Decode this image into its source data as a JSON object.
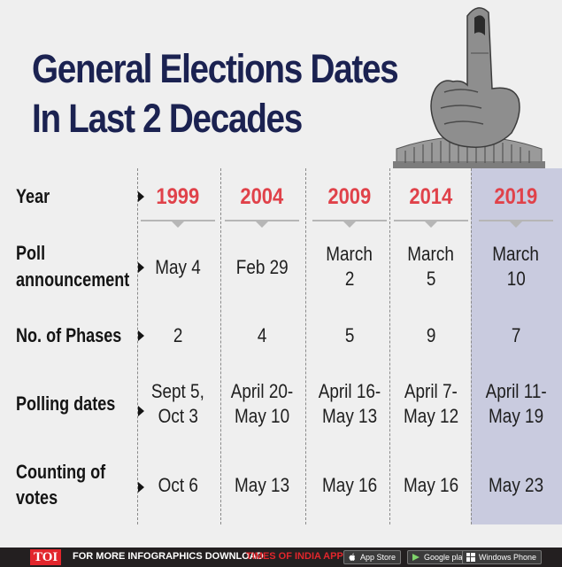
{
  "title": {
    "line1": "General Elections Dates",
    "line2": "In Last 2 Decades"
  },
  "highlight_color": "#c9cbdf",
  "accent_color": "#e0424a",
  "title_color": "#1b2251",
  "row_labels": {
    "year": "Year",
    "poll_line1": "Poll",
    "poll_line2": "announcement",
    "phases": "No. of Phases",
    "polling": "Polling dates",
    "counting_line1": "Counting of",
    "counting_line2": "votes"
  },
  "columns": [
    {
      "year": "1999",
      "poll": [
        "May 4"
      ],
      "phases": "2",
      "polling": [
        "Sept 5,",
        "Oct 3"
      ],
      "counting": "Oct 6"
    },
    {
      "year": "2004",
      "poll": [
        "Feb 29"
      ],
      "phases": "4",
      "polling": [
        "April 20-",
        "May 10"
      ],
      "counting": "May 13"
    },
    {
      "year": "2009",
      "poll": [
        "March",
        "2"
      ],
      "phases": "5",
      "polling": [
        "April 16-",
        "May 13"
      ],
      "counting": "May 16"
    },
    {
      "year": "2014",
      "poll": [
        "March",
        "5"
      ],
      "phases": "9",
      "polling": [
        "April 7-",
        "May 12"
      ],
      "counting": "May 16"
    },
    {
      "year": "2019",
      "poll": [
        "March",
        "10"
      ],
      "phases": "7",
      "polling": [
        "April 11-",
        "May 19"
      ],
      "counting": "May 23"
    }
  ],
  "footer": {
    "logo": "TOI",
    "text1": "FOR MORE  INFOGRAPHICS DOWNLOAD",
    "text2": "TIMES OF INDIA APP",
    "appstore": "App Store",
    "googleplay": "Google play",
    "windows": "Windows Phone"
  }
}
